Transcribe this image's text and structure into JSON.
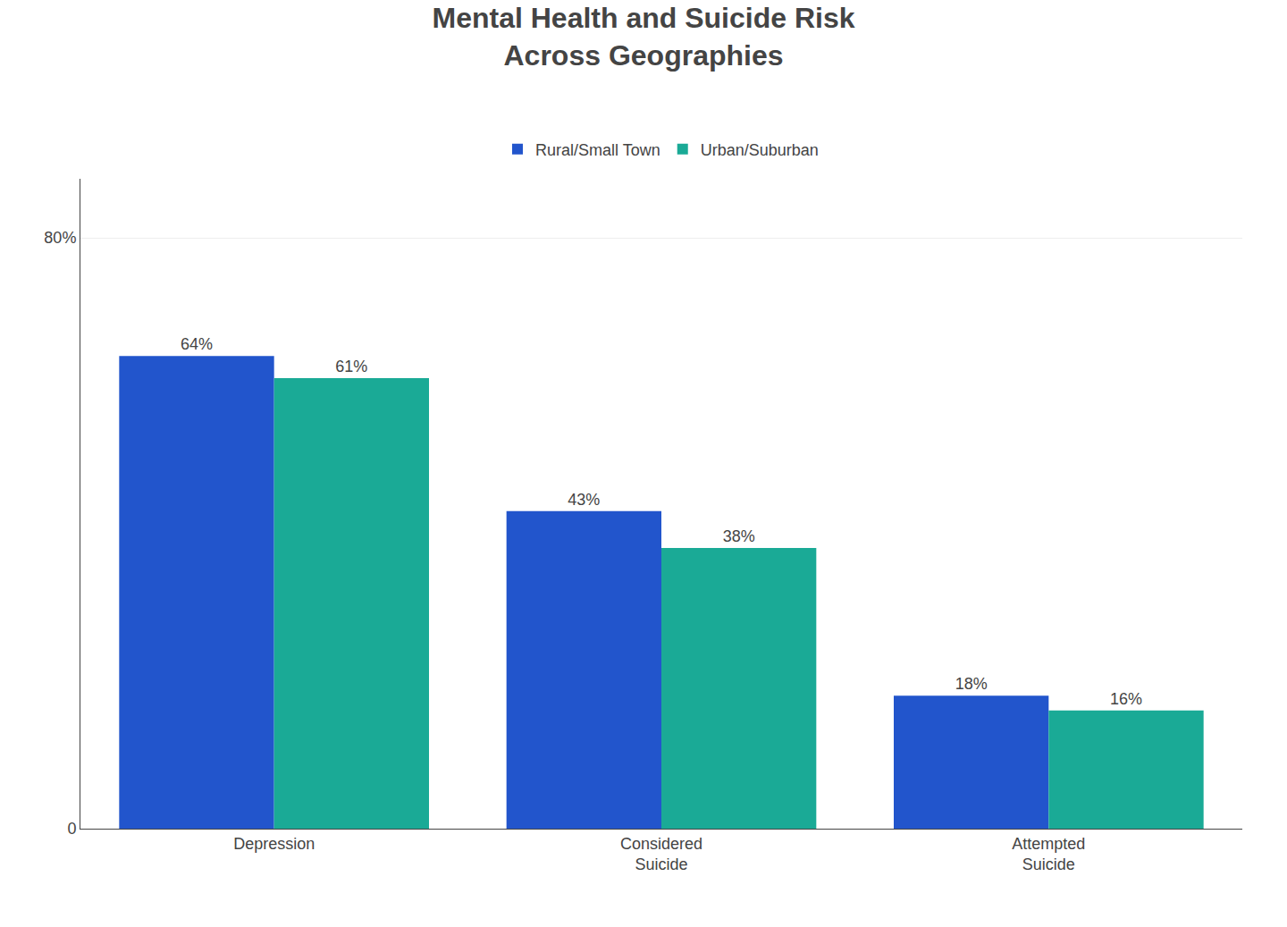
{
  "chart_data": {
    "type": "bar",
    "title": "Mental Health and Suicide Risk\nAcross Geographies",
    "categories": [
      "Depression",
      "Considered\nSuicide",
      "Attempted\nSuicide"
    ],
    "series": [
      {
        "name": "Rural/Small Town",
        "color": "#2255cc",
        "values": [
          64,
          43,
          18
        ],
        "value_labels": [
          "64%",
          "43%",
          "18%"
        ]
      },
      {
        "name": "Urban/Suburban",
        "color": "#1aaa96",
        "values": [
          61,
          38,
          16
        ],
        "value_labels": [
          "61%",
          "38%",
          "16%"
        ]
      }
    ],
    "ylim": [
      0,
      88
    ],
    "yticks": [
      0,
      {
        "value": 80,
        "label": "80%"
      }
    ],
    "grid": true,
    "data_labels": true,
    "legend": "top"
  }
}
